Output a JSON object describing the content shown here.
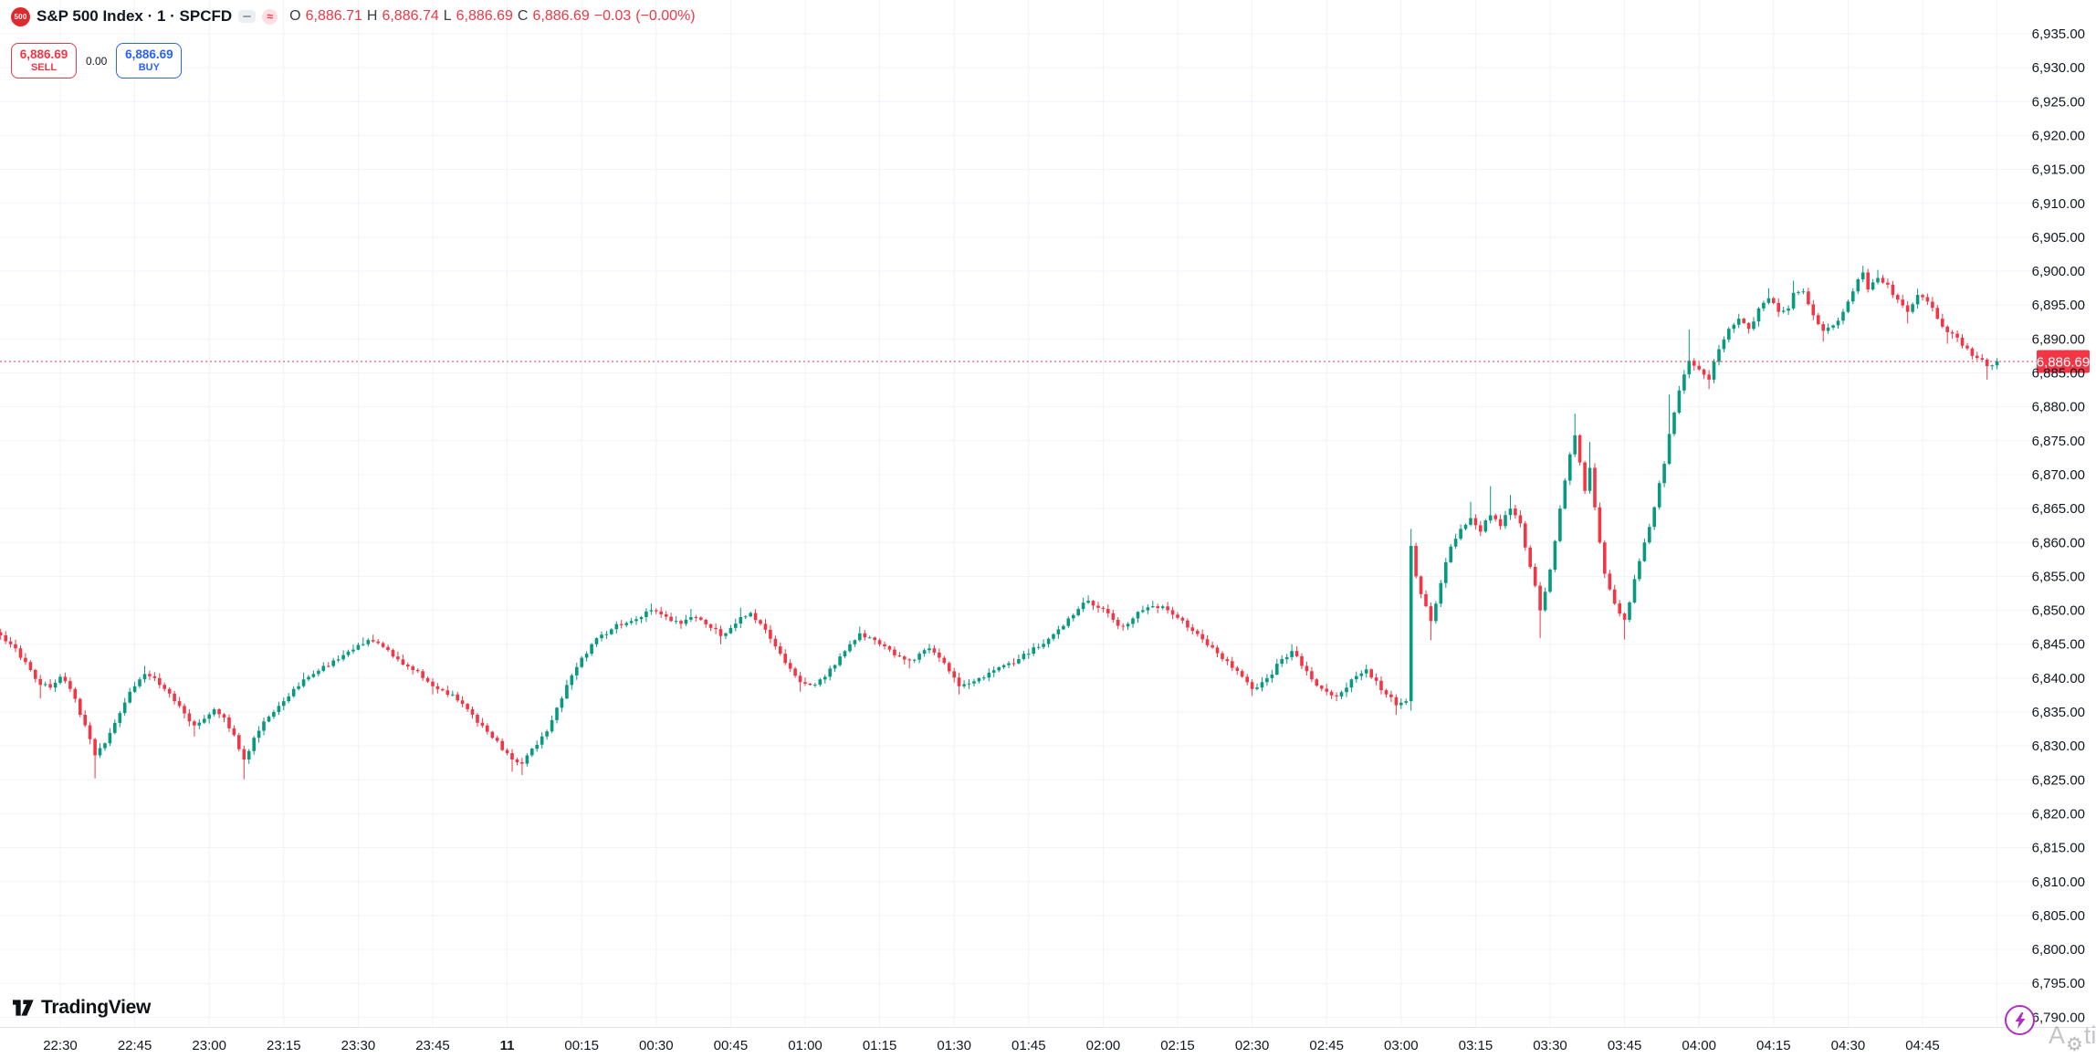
{
  "header": {
    "symbol_badge": "500",
    "title": "S&P 500 Index · 1 · SPCFD",
    "ohlc": {
      "o_label": "O",
      "o": "6,886.71",
      "h_label": "H",
      "h": "6,886.74",
      "l_label": "L",
      "l": "6,886.69",
      "c_label": "C",
      "c": "6,886.69",
      "change": "−0.03",
      "change_pct": "(−0.00%)"
    }
  },
  "trade_panel": {
    "sell_price": "6,886.69",
    "sell_label": "SELL",
    "spread": "0.00",
    "buy_price": "6,886.69",
    "buy_label": "BUY"
  },
  "footer": {
    "brand": "TradingView"
  },
  "watermark": {
    "part1": "A",
    "icon": "gear",
    "part2": "tiva"
  },
  "colors": {
    "up": "#089981",
    "down": "#f23645",
    "buy_blue": "#2962ff",
    "grid": "#f0f3fa",
    "separator": "#e0e3eb",
    "axis_text": "#131722",
    "last_price": "#f23645",
    "flash_purple": "#b02fc2"
  },
  "chart_data": {
    "type": "candlestick",
    "symbol": "SPCFD",
    "title": "S&P 500 Index",
    "interval_minutes": 1,
    "grid": true,
    "price_axis": {
      "min": 6790,
      "max": 6935,
      "step": 5,
      "side": "right"
    },
    "last": {
      "price": 6886.69,
      "label": "6,886.69"
    },
    "time_labels": [
      "22:30",
      "22:45",
      "23:00",
      "23:15",
      "23:30",
      "23:45",
      "11",
      "00:15",
      "00:30",
      "00:45",
      "01:00",
      "01:15",
      "01:30",
      "01:45",
      "02:00",
      "02:15",
      "02:30",
      "02:45",
      "03:00",
      "03:15",
      "03:30",
      "03:45",
      "04:00",
      "04:15",
      "04:30",
      "04:45"
    ],
    "bold_time_label": "11",
    "time_range": {
      "start": "22:18",
      "end": "05:00"
    },
    "anchors": [
      [
        "22:18",
        6846.3,
        6847.2,
        null
      ],
      [
        "22:20",
        6845,
        null,
        null
      ],
      [
        "22:22",
        6843,
        null,
        null
      ],
      [
        "22:24",
        6841.2,
        null,
        null
      ],
      [
        "22:26",
        6839,
        null,
        6837
      ],
      [
        "22:28",
        6838.6,
        null,
        null
      ],
      [
        "22:30",
        6840.2,
        null,
        null
      ],
      [
        "22:32",
        6838.4,
        null,
        null
      ],
      [
        "22:34",
        6834.6,
        null,
        null
      ],
      [
        "22:36",
        6831,
        null,
        null
      ],
      [
        "22:37",
        6828.6,
        null,
        6825.2
      ],
      [
        "22:39",
        6830.4,
        null,
        null
      ],
      [
        "22:41",
        6833.4,
        null,
        null
      ],
      [
        "22:43",
        6836.4,
        null,
        null
      ],
      [
        "22:45",
        6838.8,
        null,
        null
      ],
      [
        "22:47",
        6840.6,
        6841.8,
        null
      ],
      [
        "22:49",
        6840,
        null,
        null
      ],
      [
        "22:51",
        6838.4,
        null,
        null
      ],
      [
        "22:53",
        6836.6,
        null,
        null
      ],
      [
        "22:55",
        6834.8,
        null,
        null
      ],
      [
        "22:57",
        6833,
        null,
        6831.4
      ],
      [
        "22:59",
        6834,
        null,
        null
      ],
      [
        "23:01",
        6835.4,
        null,
        null
      ],
      [
        "23:03",
        6834.2,
        null,
        null
      ],
      [
        "23:05",
        6831.6,
        null,
        null
      ],
      [
        "23:07",
        6828,
        null,
        6825.1
      ],
      [
        "23:09",
        6831.2,
        null,
        null
      ],
      [
        "23:11",
        6833.6,
        null,
        null
      ],
      [
        "23:13",
        6835,
        null,
        null
      ],
      [
        "23:15",
        6836.6,
        null,
        null
      ],
      [
        "23:17",
        6838.4,
        null,
        null
      ],
      [
        "23:19",
        6839.8,
        6840.8,
        null
      ],
      [
        "23:21",
        6840.6,
        null,
        null
      ],
      [
        "23:23",
        6841.8,
        null,
        null
      ],
      [
        "23:25",
        6842.6,
        null,
        null
      ],
      [
        "23:27",
        6843.4,
        null,
        null
      ],
      [
        "23:29",
        6844.2,
        null,
        null
      ],
      [
        "23:31",
        6845,
        6846,
        null
      ],
      [
        "23:33",
        6845.4,
        6846.4,
        null
      ],
      [
        "23:35",
        6844.6,
        null,
        null
      ],
      [
        "23:37",
        6843.2,
        null,
        null
      ],
      [
        "23:39",
        6842,
        null,
        null
      ],
      [
        "23:41",
        6841.2,
        null,
        null
      ],
      [
        "23:43",
        6840,
        null,
        null
      ],
      [
        "23:45",
        6838.8,
        null,
        6837.6
      ],
      [
        "23:47",
        6838.2,
        null,
        null
      ],
      [
        "23:49",
        6837.6,
        null,
        null
      ],
      [
        "23:51",
        6836.2,
        null,
        null
      ],
      [
        "23:53",
        6834.6,
        null,
        null
      ],
      [
        "23:55",
        6833,
        null,
        null
      ],
      [
        "23:57",
        6831.2,
        null,
        null
      ],
      [
        "23:59",
        6829.4,
        null,
        null
      ],
      [
        "00:01",
        6828,
        null,
        6826.2
      ],
      [
        "00:03",
        6827.4,
        null,
        6825.7
      ],
      [
        "00:05",
        6829.6,
        null,
        null
      ],
      [
        "00:07",
        6831.4,
        null,
        null
      ],
      [
        "00:09",
        6833.8,
        null,
        null
      ],
      [
        "00:11",
        6837,
        null,
        null
      ],
      [
        "00:13",
        6840.4,
        null,
        null
      ],
      [
        "00:15",
        6843,
        null,
        null
      ],
      [
        "00:17",
        6845,
        null,
        null
      ],
      [
        "00:19",
        6846.4,
        null,
        null
      ],
      [
        "00:21",
        6847.2,
        null,
        null
      ],
      [
        "00:23",
        6847.8,
        null,
        null
      ],
      [
        "00:25",
        6848.4,
        null,
        null
      ],
      [
        "00:27",
        6849,
        null,
        null
      ],
      [
        "00:29",
        6850,
        6851,
        null
      ],
      [
        "00:31",
        6849.4,
        null,
        null
      ],
      [
        "00:33",
        6848.4,
        null,
        null
      ],
      [
        "00:35",
        6848,
        null,
        null
      ],
      [
        "00:37",
        6849,
        6850.2,
        null
      ],
      [
        "00:39",
        6848.6,
        null,
        null
      ],
      [
        "00:41",
        6847.4,
        null,
        null
      ],
      [
        "00:43",
        6846.2,
        null,
        6845
      ],
      [
        "00:45",
        6847.4,
        null,
        null
      ],
      [
        "00:47",
        6849,
        6850.4,
        null
      ],
      [
        "00:49",
        6849.6,
        null,
        null
      ],
      [
        "00:51",
        6848,
        null,
        null
      ],
      [
        "00:53",
        6845.8,
        null,
        null
      ],
      [
        "00:55",
        6843.6,
        null,
        null
      ],
      [
        "00:57",
        6841.4,
        null,
        null
      ],
      [
        "00:59",
        6839.4,
        null,
        6838
      ],
      [
        "01:01",
        6839,
        null,
        null
      ],
      [
        "01:03",
        6839.8,
        null,
        null
      ],
      [
        "01:05",
        6841.4,
        null,
        null
      ],
      [
        "01:07",
        6843.2,
        null,
        null
      ],
      [
        "01:09",
        6845,
        null,
        null
      ],
      [
        "01:11",
        6846.6,
        6847.6,
        null
      ],
      [
        "01:13",
        6846,
        null,
        null
      ],
      [
        "01:15",
        6845,
        null,
        null
      ],
      [
        "01:17",
        6844.2,
        null,
        null
      ],
      [
        "01:19",
        6843.2,
        null,
        null
      ],
      [
        "01:21",
        6842.6,
        null,
        6841.4
      ],
      [
        "01:23",
        6843.6,
        null,
        null
      ],
      [
        "01:25",
        6844.4,
        null,
        null
      ],
      [
        "01:27",
        6843,
        null,
        null
      ],
      [
        "01:29",
        6841,
        null,
        null
      ],
      [
        "01:31",
        6838.8,
        null,
        6837.6
      ],
      [
        "01:33",
        6839.2,
        null,
        null
      ],
      [
        "01:35",
        6840,
        null,
        null
      ],
      [
        "01:37",
        6840.8,
        null,
        null
      ],
      [
        "01:39",
        6841.6,
        null,
        null
      ],
      [
        "01:41",
        6842.2,
        null,
        null
      ],
      [
        "01:43",
        6842.8,
        null,
        null
      ],
      [
        "01:45",
        6843.6,
        null,
        null
      ],
      [
        "01:47",
        6844.6,
        null,
        null
      ],
      [
        "01:49",
        6845.8,
        null,
        null
      ],
      [
        "01:51",
        6847.2,
        null,
        null
      ],
      [
        "01:53",
        6848.8,
        null,
        null
      ],
      [
        "01:55",
        6850.2,
        null,
        null
      ],
      [
        "01:57",
        6851.4,
        6852.2,
        null
      ],
      [
        "02:00",
        6850.2,
        null,
        null
      ],
      [
        "02:02",
        6848.6,
        null,
        null
      ],
      [
        "02:04",
        6847.6,
        null,
        null
      ],
      [
        "02:06",
        6848.8,
        null,
        null
      ],
      [
        "02:08",
        6850,
        null,
        null
      ],
      [
        "02:10",
        6850.6,
        6851.4,
        null
      ],
      [
        "02:13",
        6850,
        null,
        null
      ],
      [
        "02:16",
        6848.5,
        null,
        null
      ],
      [
        "02:19",
        6846.5,
        null,
        null
      ],
      [
        "02:22",
        6844.5,
        null,
        null
      ],
      [
        "02:25",
        6842.5,
        null,
        null
      ],
      [
        "02:28",
        6840.2,
        null,
        null
      ],
      [
        "02:30",
        6838.4,
        null,
        6837.4
      ],
      [
        "02:33",
        6840,
        null,
        null
      ],
      [
        "02:36",
        6842.8,
        null,
        null
      ],
      [
        "02:38",
        6844,
        6845,
        null
      ],
      [
        "02:40",
        6841.8,
        null,
        null
      ],
      [
        "02:42",
        6839.8,
        null,
        null
      ],
      [
        "02:45",
        6838,
        null,
        null
      ],
      [
        "02:47",
        6837.3,
        null,
        null
      ],
      [
        "02:49",
        6838.6,
        null,
        null
      ],
      [
        "02:51",
        6840.3,
        null,
        null
      ],
      [
        "02:53",
        6841.3,
        null,
        null
      ],
      [
        "02:55",
        6839.6,
        null,
        null
      ],
      [
        "02:57",
        6837.6,
        null,
        null
      ],
      [
        "02:59",
        6836,
        null,
        6834.6
      ],
      [
        "03:01",
        6836.6,
        null,
        null
      ],
      [
        "03:02",
        6859.5,
        6862,
        6835.2
      ],
      [
        "03:03",
        6855,
        null,
        null
      ],
      [
        "03:05",
        6850.6,
        null,
        null
      ],
      [
        "03:06",
        6848.4,
        null,
        6845.6
      ],
      [
        "03:08",
        6854,
        null,
        null
      ],
      [
        "03:10",
        6859.4,
        null,
        null
      ],
      [
        "03:12",
        6862,
        null,
        null
      ],
      [
        "03:14",
        6863.6,
        6866,
        null
      ],
      [
        "03:16",
        6861.6,
        null,
        null
      ],
      [
        "03:18",
        6864,
        6868.3,
        null
      ],
      [
        "03:20",
        6862.4,
        null,
        null
      ],
      [
        "03:22",
        6865,
        6867,
        null
      ],
      [
        "03:24",
        6862.8,
        null,
        null
      ],
      [
        "03:26",
        6856.4,
        null,
        null
      ],
      [
        "03:28",
        6850,
        null,
        6845.9
      ],
      [
        "03:30",
        6856,
        null,
        null
      ],
      [
        "03:32",
        6865,
        null,
        null
      ],
      [
        "03:34",
        6873,
        null,
        null
      ],
      [
        "03:35",
        6875.8,
        6879,
        null
      ],
      [
        "03:37",
        6867.6,
        null,
        null
      ],
      [
        "03:38",
        6871,
        6874.8,
        null
      ],
      [
        "03:40",
        6860,
        null,
        null
      ],
      [
        "03:41",
        6855.4,
        null,
        null
      ],
      [
        "03:43",
        6851,
        null,
        null
      ],
      [
        "03:45",
        6848.6,
        null,
        6845.7
      ],
      [
        "03:47",
        6854.6,
        null,
        null
      ],
      [
        "03:49",
        6860,
        null,
        null
      ],
      [
        "03:51",
        6865.2,
        null,
        null
      ],
      [
        "03:53",
        6871.6,
        null,
        null
      ],
      [
        "03:54",
        6876,
        6881.8,
        null
      ],
      [
        "03:56",
        6882.4,
        null,
        null
      ],
      [
        "03:58",
        6886.8,
        6891.4,
        null
      ],
      [
        "04:00",
        6885.5,
        null,
        null
      ],
      [
        "04:02",
        6884,
        null,
        6882.6
      ],
      [
        "04:04",
        6888.5,
        null,
        null
      ],
      [
        "04:06",
        6891.5,
        null,
        null
      ],
      [
        "04:08",
        6893,
        null,
        null
      ],
      [
        "04:10",
        6891.5,
        null,
        null
      ],
      [
        "04:12",
        6894.5,
        null,
        null
      ],
      [
        "04:14",
        6896,
        6897.5,
        null
      ],
      [
        "04:16",
        6894,
        null,
        null
      ],
      [
        "04:18",
        6894.5,
        null,
        null
      ],
      [
        "04:19",
        6896.8,
        6898.6,
        null
      ],
      [
        "04:21",
        6897,
        null,
        null
      ],
      [
        "04:23",
        6893.5,
        null,
        null
      ],
      [
        "04:25",
        6891.2,
        null,
        6889.6
      ],
      [
        "04:27",
        6892,
        null,
        null
      ],
      [
        "04:29",
        6894,
        null,
        null
      ],
      [
        "04:31",
        6897,
        null,
        null
      ],
      [
        "04:33",
        6899.8,
        6900.8,
        null
      ],
      [
        "04:34",
        6897.3,
        null,
        null
      ],
      [
        "04:36",
        6899,
        6900.2,
        null
      ],
      [
        "04:38",
        6898,
        null,
        null
      ],
      [
        "04:40",
        6895.8,
        null,
        null
      ],
      [
        "04:42",
        6894,
        null,
        6892.3
      ],
      [
        "04:44",
        6896.5,
        6897.4,
        null
      ],
      [
        "04:46",
        6895.5,
        null,
        null
      ],
      [
        "04:48",
        6893,
        null,
        null
      ],
      [
        "04:50",
        6891,
        null,
        6889.3
      ],
      [
        "04:52",
        6890.2,
        null,
        null
      ],
      [
        "04:54",
        6888.6,
        null,
        null
      ],
      [
        "04:56",
        6887.2,
        null,
        null
      ],
      [
        "04:58",
        6886,
        null,
        6884
      ],
      [
        "05:00",
        6886.69,
        null,
        null
      ]
    ]
  }
}
